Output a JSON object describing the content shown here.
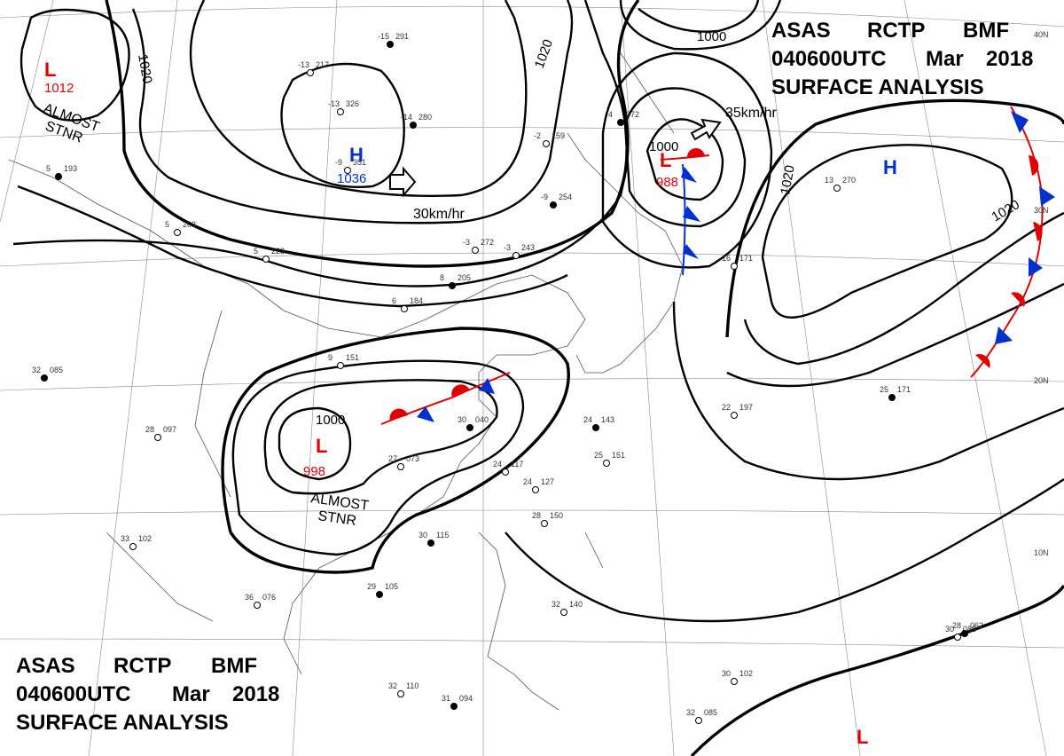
{
  "header_right": {
    "line1": [
      "ASAS",
      "RCTP",
      "BMF"
    ],
    "line2": [
      "040600UTC",
      "Mar",
      "2018"
    ],
    "line3": "SURFACE ANALYSIS"
  },
  "header_left": {
    "line1": [
      "ASAS",
      "RCTP",
      "BMF"
    ],
    "line2": [
      "040600UTC",
      "Mar",
      "2018"
    ],
    "line3": "SURFACE ANALYSIS"
  },
  "lat_labels": [
    "40N",
    "30N",
    "20N",
    "10N"
  ],
  "pressure_centers": [
    {
      "id": "low-nw",
      "type": "L",
      "value": "1012",
      "note": "ALMOST STNR"
    },
    {
      "id": "high-mongolia",
      "type": "H",
      "value": "1036",
      "motion": "30km/hr"
    },
    {
      "id": "low-japan",
      "type": "L",
      "value": "988",
      "motion": "35km/hr"
    },
    {
      "id": "high-pacific",
      "type": "H",
      "value": ""
    },
    {
      "id": "low-china",
      "type": "L",
      "value": "998",
      "note": "ALMOST STNR"
    },
    {
      "id": "low-se",
      "type": "L",
      "value": ""
    }
  ],
  "isobar_labels": [
    "1020",
    "1020",
    "1000",
    "1000",
    "1020",
    "1020",
    "1000"
  ],
  "motion_labels": [
    "30km/hr",
    "35km/hr"
  ],
  "almost_stnr": [
    "ALMOST",
    "STNR"
  ],
  "station_samples": [
    {
      "id": "s1",
      "pressure": "291",
      "temp": "-15"
    },
    {
      "id": "s2",
      "pressure": "217",
      "temp": "-13"
    },
    {
      "id": "s3",
      "pressure": "326",
      "temp": "-13"
    },
    {
      "id": "s4",
      "pressure": "280",
      "temp": "-14"
    },
    {
      "id": "s5",
      "pressure": "159",
      "temp": "-2"
    },
    {
      "id": "s6",
      "pressure": "351",
      "temp": "-9"
    },
    {
      "id": "s7",
      "pressure": "254",
      "temp": "-9"
    },
    {
      "id": "s8",
      "pressure": "272",
      "temp": "-3"
    },
    {
      "id": "s9",
      "pressure": "243",
      "temp": "-3"
    },
    {
      "id": "s10",
      "pressure": "205",
      "temp": "8"
    },
    {
      "id": "s11",
      "pressure": "184",
      "temp": "6"
    },
    {
      "id": "s12",
      "pressure": "151",
      "temp": "9"
    },
    {
      "id": "s13",
      "pressure": "085",
      "temp": "32"
    },
    {
      "id": "s14",
      "pressure": "097",
      "temp": "28"
    },
    {
      "id": "s15",
      "pressure": "073",
      "temp": "27"
    },
    {
      "id": "s16",
      "pressure": "040",
      "temp": "30"
    },
    {
      "id": "s17",
      "pressure": "117",
      "temp": "24"
    },
    {
      "id": "s18",
      "pressure": "127",
      "temp": "24"
    },
    {
      "id": "s19",
      "pressure": "143",
      "temp": "24"
    },
    {
      "id": "s20",
      "pressure": "151",
      "temp": "25"
    },
    {
      "id": "s21",
      "pressure": "150",
      "temp": "28"
    },
    {
      "id": "s22",
      "pressure": "115",
      "temp": "30"
    },
    {
      "id": "s23",
      "pressure": "102",
      "temp": "33"
    },
    {
      "id": "s24",
      "pressure": "076",
      "temp": "36"
    },
    {
      "id": "s25",
      "pressure": "105",
      "temp": "29"
    },
    {
      "id": "s26",
      "pressure": "140",
      "temp": "32"
    },
    {
      "id": "s27",
      "pressure": "110",
      "temp": "32"
    },
    {
      "id": "s28",
      "pressure": "094",
      "temp": "31"
    },
    {
      "id": "s29",
      "pressure": "102",
      "temp": "30"
    },
    {
      "id": "s30",
      "pressure": "083",
      "temp": "30"
    },
    {
      "id": "s31",
      "pressure": "062",
      "temp": "28"
    },
    {
      "id": "s32",
      "pressure": "085",
      "temp": "32"
    },
    {
      "id": "s33",
      "pressure": "197",
      "temp": "22"
    },
    {
      "id": "s34",
      "pressure": "171",
      "temp": "25"
    },
    {
      "id": "s35",
      "pressure": "171",
      "temp": "16"
    },
    {
      "id": "s36",
      "pressure": "270",
      "temp": "13"
    },
    {
      "id": "s37",
      "pressure": "072",
      "temp": "4"
    },
    {
      "id": "s38",
      "pressure": "203",
      "temp": "5"
    },
    {
      "id": "s39",
      "pressure": "223",
      "temp": "5"
    },
    {
      "id": "s40",
      "pressure": "193",
      "temp": "5"
    }
  ],
  "colors": {
    "isobar": "#000000",
    "low": "#e00000",
    "high": "#0030d0",
    "warm_front": "#e00000",
    "cold_front": "#0030d0",
    "coast": "#555555",
    "grid": "#888888"
  }
}
